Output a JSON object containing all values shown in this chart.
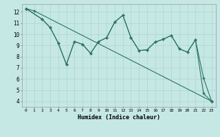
{
  "xlabel": "Humidex (Indice chaleur)",
  "background_color": "#c5e8e5",
  "line_color": "#2a7068",
  "grid_color": "#aed4d0",
  "xlim": [
    -0.5,
    23.5
  ],
  "ylim": [
    3.5,
    12.7
  ],
  "yticks": [
    4,
    5,
    6,
    7,
    8,
    9,
    10,
    11,
    12
  ],
  "xticks": [
    0,
    1,
    2,
    3,
    4,
    5,
    6,
    7,
    8,
    9,
    10,
    11,
    12,
    13,
    14,
    15,
    16,
    17,
    18,
    19,
    20,
    21,
    22,
    23
  ],
  "line1_x": [
    0,
    1,
    23
  ],
  "line1_y": [
    12.3,
    12.1,
    4.0
  ],
  "line2_x": [
    0,
    2,
    3,
    4,
    5,
    6,
    7,
    8,
    9,
    10,
    11,
    12,
    13,
    14,
    15,
    16,
    17,
    18,
    19,
    20,
    21,
    22,
    23
  ],
  "line2_y": [
    12.3,
    11.35,
    10.6,
    9.2,
    7.3,
    9.35,
    9.1,
    8.3,
    9.35,
    9.7,
    11.1,
    11.7,
    9.7,
    8.55,
    8.6,
    9.3,
    9.55,
    9.9,
    8.7,
    8.4,
    9.5,
    6.1,
    4.0
  ],
  "line3_x": [
    0,
    2,
    3,
    4,
    5,
    6,
    7,
    8,
    9,
    10,
    11,
    12,
    13,
    14,
    15,
    16,
    17,
    18,
    19,
    20,
    21,
    22,
    23
  ],
  "line3_y": [
    12.3,
    11.35,
    10.6,
    9.2,
    7.3,
    9.35,
    9.1,
    8.3,
    9.35,
    9.7,
    11.1,
    11.7,
    9.7,
    8.55,
    8.6,
    9.3,
    9.55,
    9.9,
    8.7,
    8.4,
    9.5,
    4.7,
    4.0
  ]
}
